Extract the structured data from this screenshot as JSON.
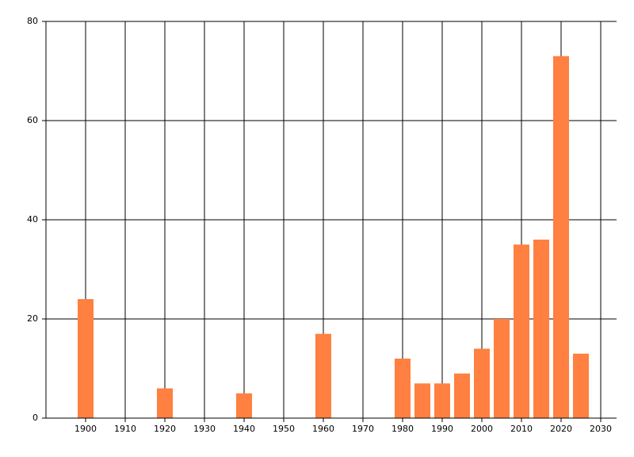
{
  "chart_data": {
    "type": "bar",
    "x": [
      1900,
      1920,
      1940,
      1960,
      1980,
      1985,
      1990,
      1995,
      2000,
      2005,
      2010,
      2015,
      2020,
      2025
    ],
    "values": [
      24,
      6,
      5,
      17,
      12,
      7,
      7,
      9,
      14,
      20,
      35,
      36,
      73,
      13
    ],
    "color": "#ff8040",
    "xlim": [
      1890,
      2034
    ],
    "xticks": [
      1900,
      1910,
      1920,
      1930,
      1940,
      1950,
      1960,
      1970,
      1980,
      1990,
      2000,
      2010,
      2020,
      2030
    ],
    "ylim": [
      0,
      80
    ],
    "yticks": [
      0,
      20,
      40,
      60,
      80
    ],
    "grid": true
  }
}
